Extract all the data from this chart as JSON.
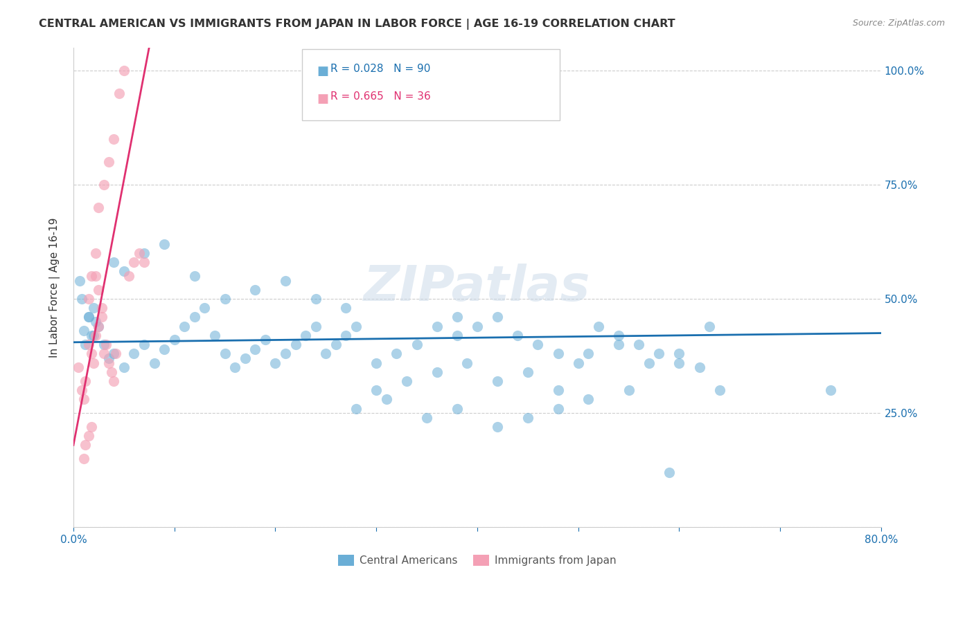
{
  "title": "CENTRAL AMERICAN VS IMMIGRANTS FROM JAPAN IN LABOR FORCE | AGE 16-19 CORRELATION CHART",
  "source": "Source: ZipAtlas.com",
  "ylabel": "In Labor Force | Age 16-19",
  "xlim": [
    0.0,
    0.8
  ],
  "ylim": [
    0.0,
    1.05
  ],
  "blue_color": "#6aaed6",
  "pink_color": "#f4a0b5",
  "blue_line_color": "#1a6faf",
  "pink_line_color": "#e03070",
  "legend_blue_R": "R = 0.028",
  "legend_blue_N": "N = 90",
  "legend_pink_R": "R = 0.665",
  "legend_pink_N": "N = 36",
  "watermark": "ZIPatlas",
  "blue_scatter_x": [
    0.02,
    0.025,
    0.015,
    0.03,
    0.04,
    0.018,
    0.022,
    0.035,
    0.01,
    0.012,
    0.05,
    0.06,
    0.07,
    0.08,
    0.09,
    0.1,
    0.11,
    0.12,
    0.13,
    0.14,
    0.15,
    0.16,
    0.17,
    0.18,
    0.19,
    0.2,
    0.21,
    0.22,
    0.23,
    0.24,
    0.25,
    0.26,
    0.27,
    0.28,
    0.3,
    0.32,
    0.34,
    0.36,
    0.38,
    0.4,
    0.42,
    0.44,
    0.46,
    0.48,
    0.5,
    0.52,
    0.54,
    0.56,
    0.58,
    0.6,
    0.63,
    0.75,
    0.02,
    0.015,
    0.008,
    0.006,
    0.04,
    0.05,
    0.07,
    0.09,
    0.12,
    0.15,
    0.18,
    0.21,
    0.24,
    0.27,
    0.3,
    0.33,
    0.36,
    0.39,
    0.42,
    0.45,
    0.48,
    0.51,
    0.54,
    0.57,
    0.6,
    0.64,
    0.28,
    0.31,
    0.35,
    0.38,
    0.42,
    0.45,
    0.48,
    0.51,
    0.55,
    0.59,
    0.62,
    0.38
  ],
  "blue_scatter_y": [
    0.42,
    0.44,
    0.46,
    0.4,
    0.38,
    0.42,
    0.45,
    0.37,
    0.43,
    0.4,
    0.35,
    0.38,
    0.4,
    0.36,
    0.39,
    0.41,
    0.44,
    0.46,
    0.48,
    0.42,
    0.38,
    0.35,
    0.37,
    0.39,
    0.41,
    0.36,
    0.38,
    0.4,
    0.42,
    0.44,
    0.38,
    0.4,
    0.42,
    0.44,
    0.36,
    0.38,
    0.4,
    0.44,
    0.42,
    0.44,
    0.46,
    0.42,
    0.4,
    0.38,
    0.36,
    0.44,
    0.42,
    0.4,
    0.38,
    0.36,
    0.44,
    0.3,
    0.48,
    0.46,
    0.5,
    0.54,
    0.58,
    0.56,
    0.6,
    0.62,
    0.55,
    0.5,
    0.52,
    0.54,
    0.5,
    0.48,
    0.3,
    0.32,
    0.34,
    0.36,
    0.32,
    0.34,
    0.3,
    0.38,
    0.4,
    0.36,
    0.38,
    0.3,
    0.26,
    0.28,
    0.24,
    0.26,
    0.22,
    0.24,
    0.26,
    0.28,
    0.3,
    0.12,
    0.35,
    0.46
  ],
  "pink_scatter_x": [
    0.005,
    0.008,
    0.01,
    0.012,
    0.015,
    0.018,
    0.02,
    0.022,
    0.025,
    0.028,
    0.03,
    0.032,
    0.035,
    0.038,
    0.04,
    0.042,
    0.015,
    0.018,
    0.022,
    0.025,
    0.03,
    0.035,
    0.04,
    0.045,
    0.05,
    0.055,
    0.06,
    0.065,
    0.07,
    0.01,
    0.012,
    0.015,
    0.018,
    0.022,
    0.025,
    0.028
  ],
  "pink_scatter_y": [
    0.35,
    0.3,
    0.28,
    0.32,
    0.4,
    0.38,
    0.36,
    0.42,
    0.44,
    0.46,
    0.38,
    0.4,
    0.36,
    0.34,
    0.32,
    0.38,
    0.5,
    0.55,
    0.6,
    0.7,
    0.75,
    0.8,
    0.85,
    0.95,
    1.0,
    0.55,
    0.58,
    0.6,
    0.58,
    0.15,
    0.18,
    0.2,
    0.22,
    0.55,
    0.52,
    0.48
  ],
  "blue_line_x": [
    0.0,
    0.8
  ],
  "blue_line_y": [
    0.405,
    0.425
  ],
  "pink_line_x": [
    0.0,
    0.075
  ],
  "pink_line_y": [
    0.18,
    1.05
  ],
  "grid_color": "#cccccc",
  "background_color": "#ffffff"
}
